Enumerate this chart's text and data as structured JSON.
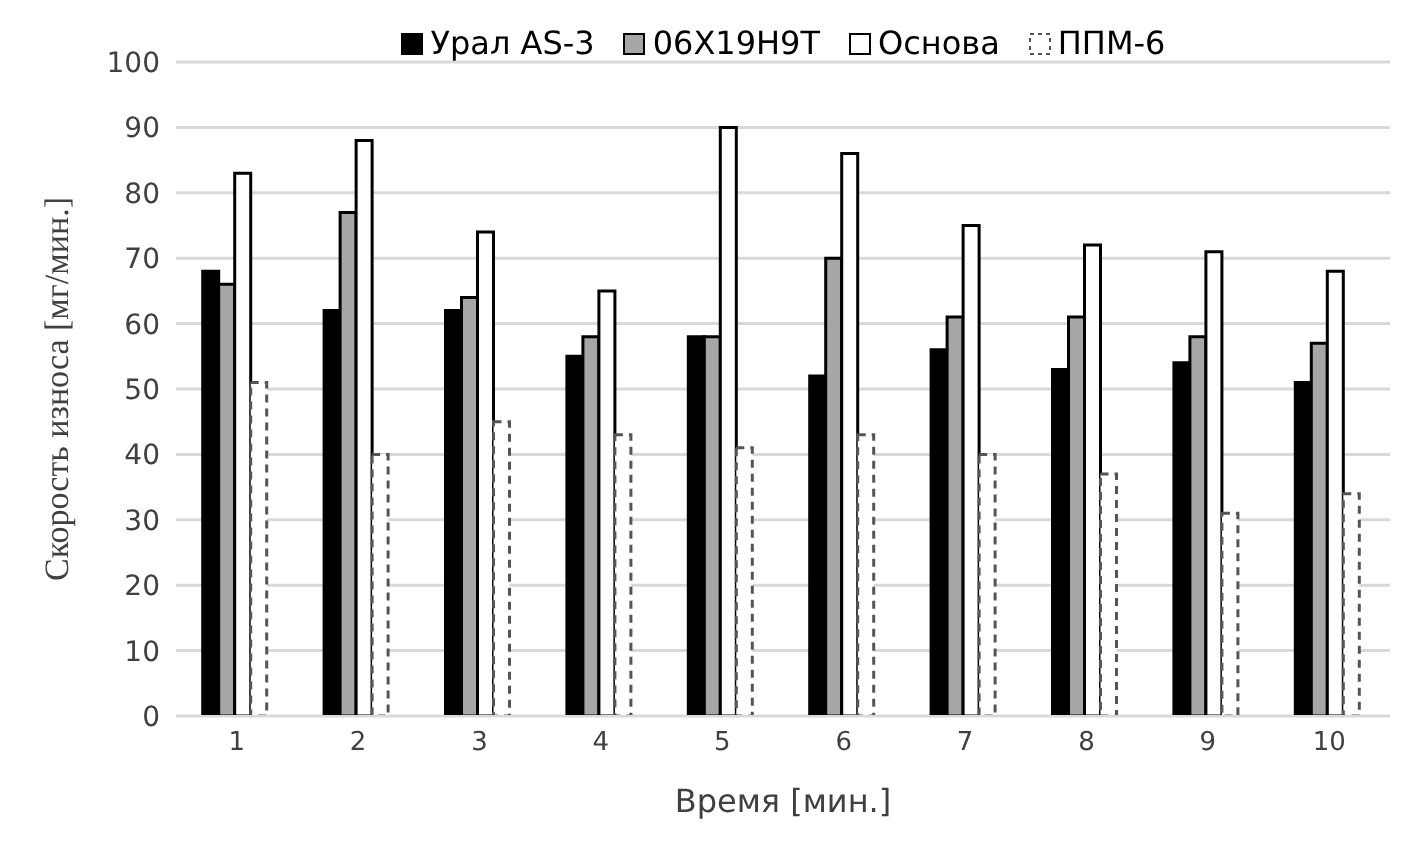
{
  "chart_data": {
    "type": "bar",
    "ylabel": "Скорость износа [мг/мин.]",
    "xlabel": "Время [мин.]",
    "categories": [
      "1",
      "2",
      "3",
      "4",
      "5",
      "6",
      "7",
      "8",
      "9",
      "10"
    ],
    "series": [
      {
        "name": "Урал AS-3",
        "color": "#000000",
        "values": [
          68,
          62,
          62,
          55,
          58,
          52,
          56,
          53,
          54,
          51
        ]
      },
      {
        "name": "06X19H9T",
        "color": "#a6a6a6",
        "values": [
          66,
          77,
          64,
          58,
          58,
          70,
          61,
          61,
          58,
          57
        ]
      },
      {
        "name": "Основа",
        "color": "#ffffff",
        "values": [
          83,
          88,
          74,
          65,
          90,
          86,
          75,
          72,
          71,
          68
        ]
      },
      {
        "name": "ППМ-6",
        "color": "#ffffff",
        "line_style": "dashed",
        "values": [
          51,
          40,
          45,
          43,
          41,
          43,
          40,
          37,
          31,
          34
        ]
      }
    ],
    "ylim": [
      0,
      100
    ],
    "yticks": [
      0,
      10,
      20,
      30,
      40,
      50,
      60,
      70,
      80,
      90,
      100
    ],
    "grid": "y",
    "legend": "top"
  }
}
